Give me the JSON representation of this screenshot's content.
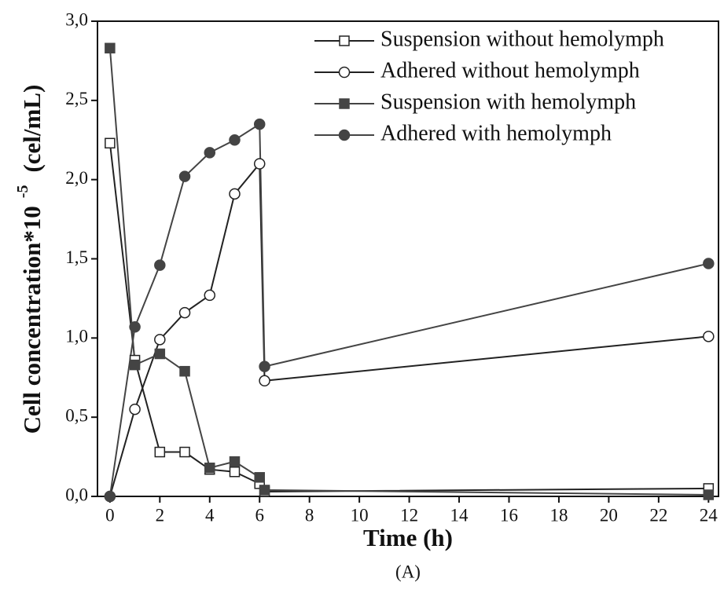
{
  "chart_data": {
    "type": "line",
    "x_label": "Time (h)",
    "y_label": "Cell concentration*10",
    "y_label_exponent": "-5",
    "y_label_unit": "(cel/mL)",
    "caption": "(A)",
    "x": [
      0,
      1,
      2,
      3,
      4,
      5,
      6,
      6.2,
      24
    ],
    "series": [
      {
        "name": "Suspension without  hemolymph",
        "color": "#222222",
        "marker": "open-square",
        "values": [
          2.23,
          0.86,
          0.28,
          0.28,
          0.17,
          0.155,
          0.08,
          0.03,
          0.05
        ]
      },
      {
        "name": "Adhered without  hemolymph",
        "color": "#222222",
        "marker": "open-circle",
        "values": [
          0,
          0.55,
          0.99,
          1.16,
          1.27,
          1.91,
          2.1,
          0.73,
          1.01
        ]
      },
      {
        "name": "Suspension with hemolymph",
        "color": "#444444",
        "marker": "filled-square",
        "values": [
          2.83,
          0.83,
          0.9,
          0.79,
          0.18,
          0.22,
          0.12,
          0.04,
          0.01
        ]
      },
      {
        "name": "Adhered with  hemolymph",
        "color": "#444444",
        "marker": "filled-circle",
        "values": [
          0,
          1.07,
          1.46,
          2.02,
          2.17,
          2.25,
          2.35,
          0.82,
          1.47
        ]
      }
    ],
    "xlim": [
      -0.5,
      24.4
    ],
    "xticks": [
      0,
      2,
      4,
      6,
      8,
      10,
      12,
      14,
      16,
      18,
      20,
      22,
      24
    ],
    "ylim": [
      0,
      3
    ],
    "yticks": [
      {
        "value": 0,
        "label": "0,0"
      },
      {
        "value": 0.5,
        "label": "0,5"
      },
      {
        "value": 1,
        "label": "1,0"
      },
      {
        "value": 1.5,
        "label": "1,5"
      },
      {
        "value": 2,
        "label": "2,0"
      },
      {
        "value": 2.5,
        "label": "2,5"
      },
      {
        "value": 3,
        "label": "3,0"
      }
    ],
    "legend": "upper-right"
  }
}
